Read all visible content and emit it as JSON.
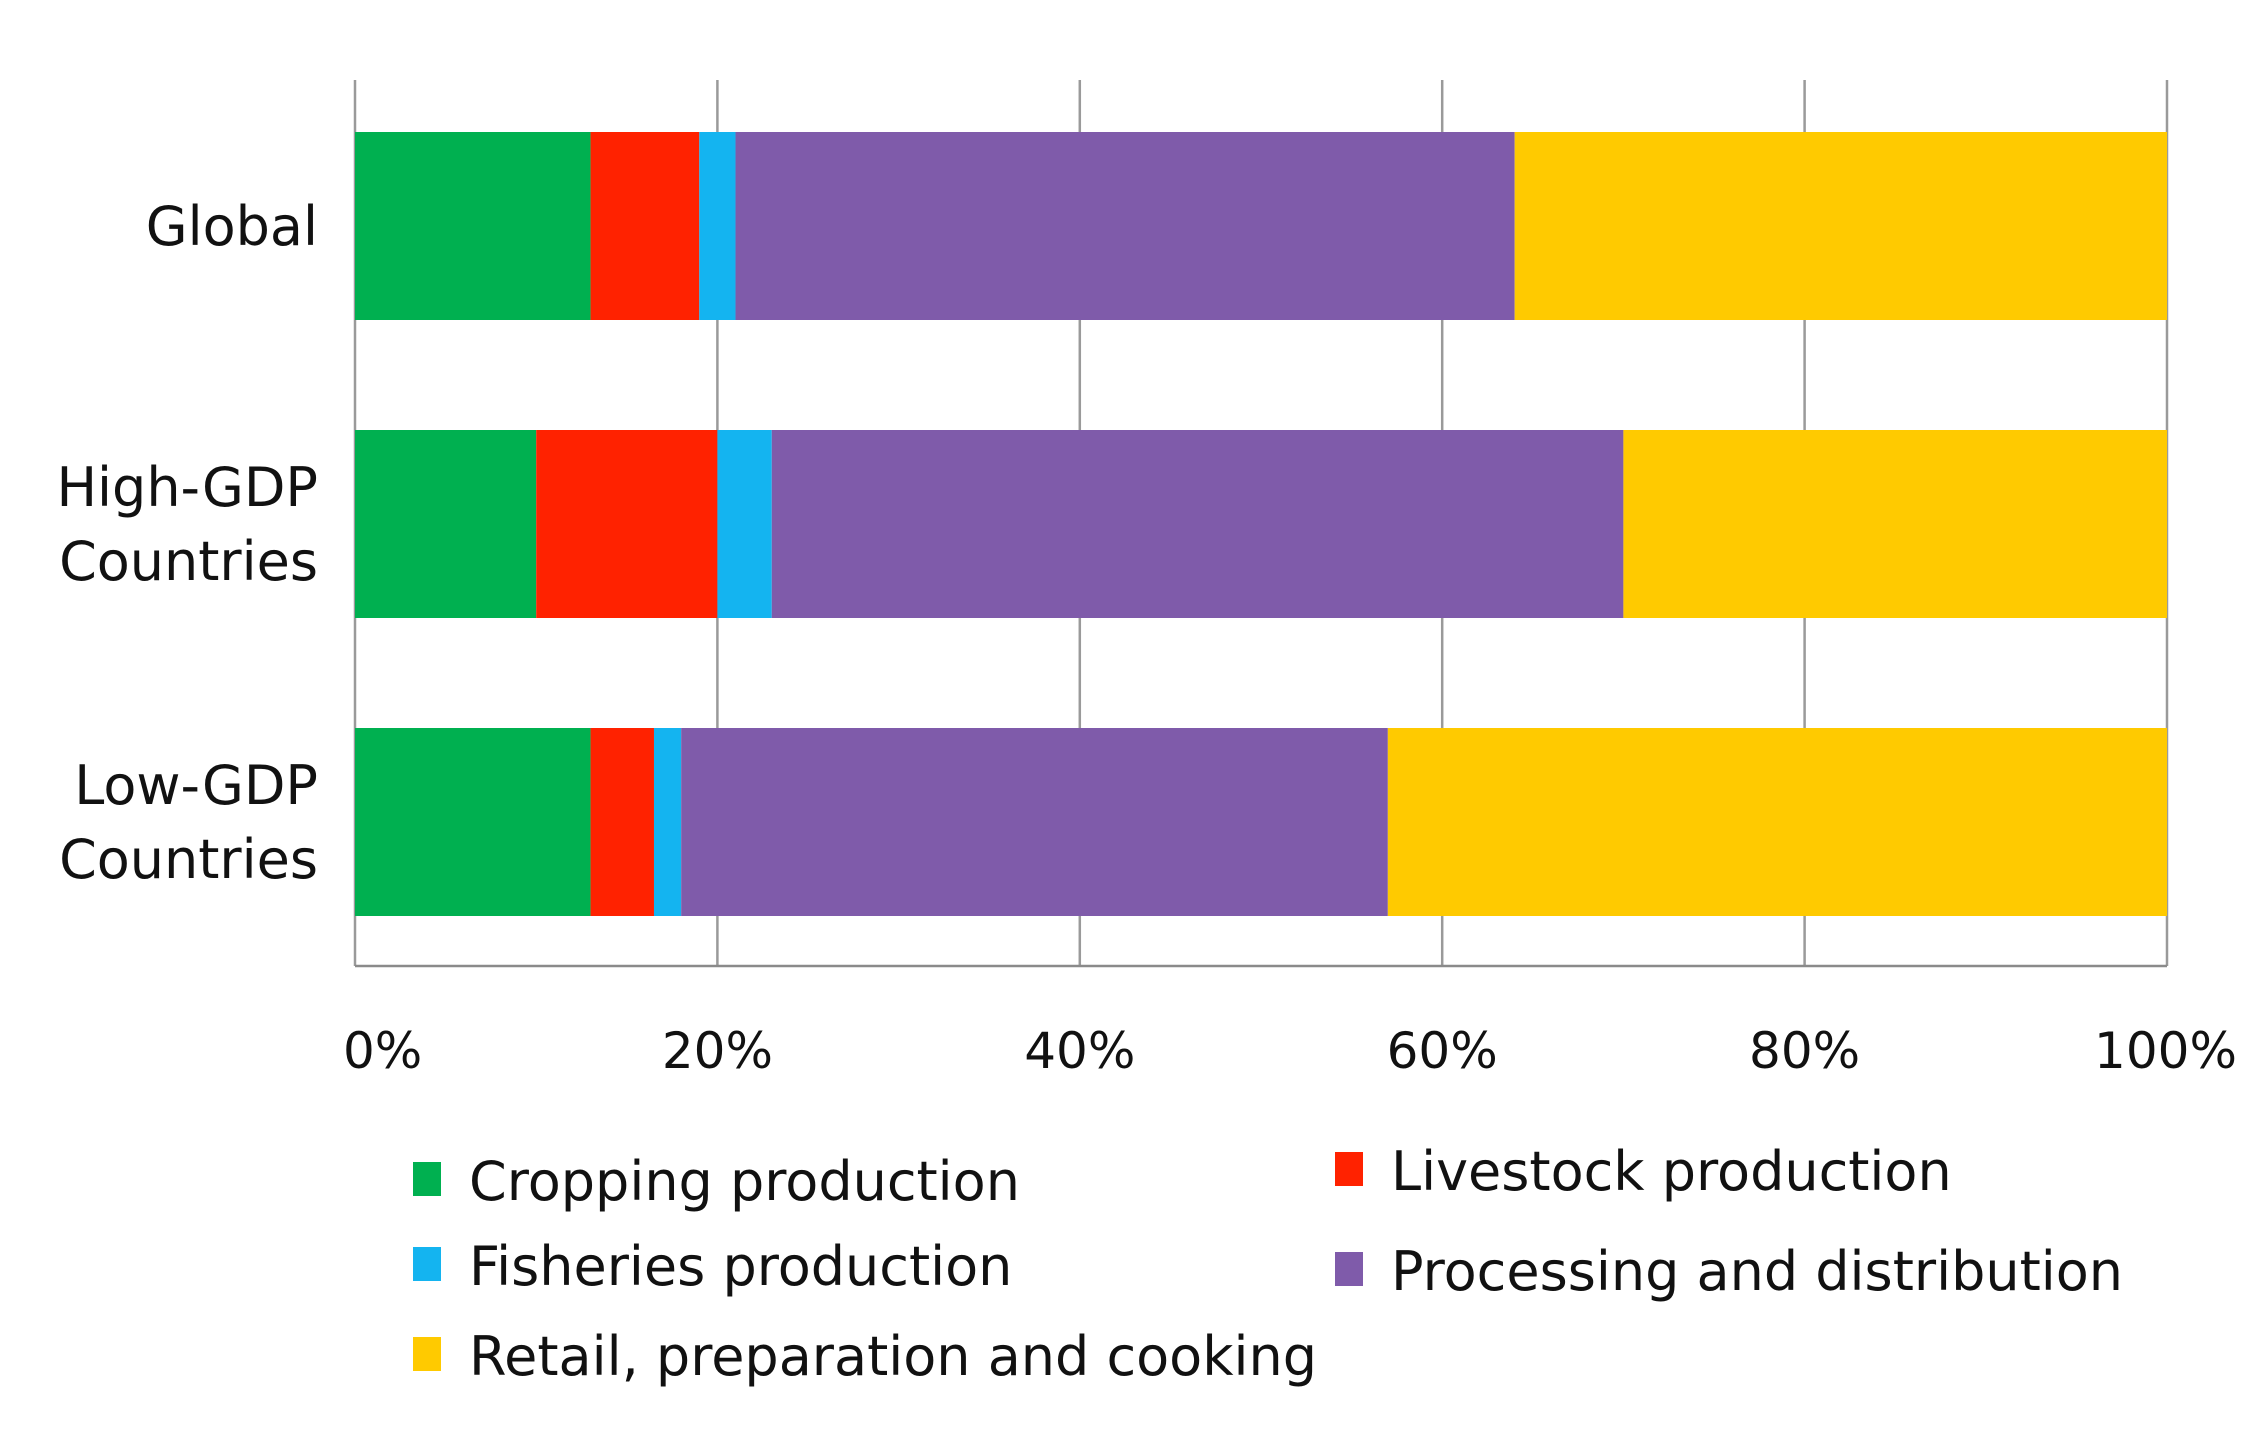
{
  "chart_data": {
    "type": "bar",
    "orientation": "horizontal",
    "stacked": true,
    "title": "",
    "xlabel": "",
    "ylabel": "",
    "xlim": [
      0,
      100
    ],
    "grid": true,
    "legend_position": "bottom",
    "categories": [
      [
        "Global"
      ],
      [
        "High-GDP",
        "Countries"
      ],
      [
        "Low-GDP",
        "Countries"
      ]
    ],
    "x_ticks": [
      "0%",
      "20%",
      "40%",
      "60%",
      "80%",
      "100%"
    ],
    "x_tick_values": [
      0,
      20,
      40,
      60,
      80,
      100
    ],
    "series": [
      {
        "name": "Cropping production",
        "color": "#00B050",
        "values": [
          13,
          10,
          13
        ]
      },
      {
        "name": "Livestock production",
        "color": "#FF2200",
        "values": [
          6,
          10,
          3.5
        ]
      },
      {
        "name": "Fisheries production",
        "color": "#14B4F0",
        "values": [
          2,
          3,
          1.5
        ]
      },
      {
        "name": "Processing and distribution",
        "color": "#7F5BAA",
        "values": [
          43,
          47,
          39
        ]
      },
      {
        "name": "Retail, preparation and cooking",
        "color": "#FFCA00",
        "values": [
          36,
          30,
          43
        ]
      }
    ],
    "legend_order": [
      0,
      1,
      2,
      3,
      4
    ]
  }
}
